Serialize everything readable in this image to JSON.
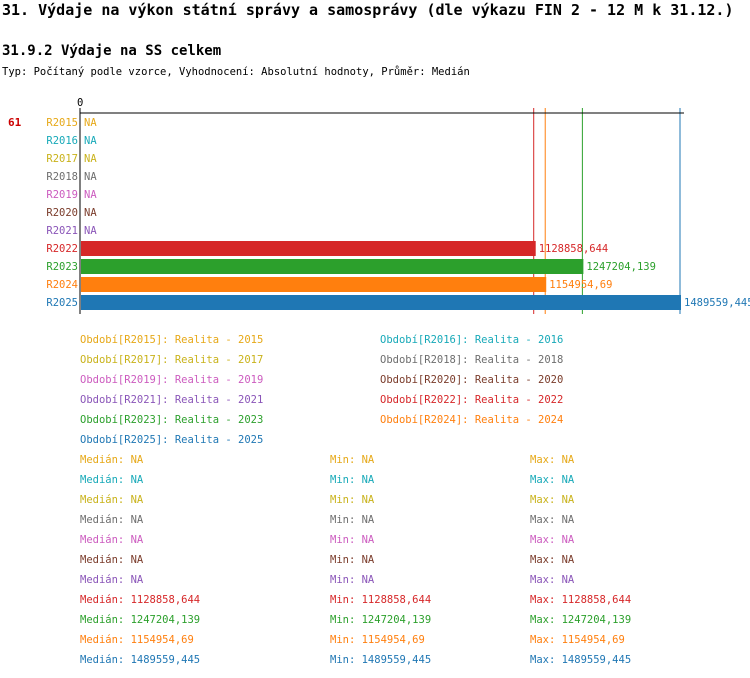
{
  "header": {
    "title": "31. Výdaje na výkon státní správy a samosprávy (dle výkazu FIN 2 - 12 M k 31.12.)",
    "subtitle": "31.9.2 Výdaje na SS celkem",
    "info": "Typ: Počítaný podle vzorce, Vyhodnocení: Absolutní hodnoty, Průměr: Medián",
    "row_id": "61"
  },
  "chart_data": {
    "type": "bar",
    "orientation": "horizontal",
    "axis_zero_label": "0",
    "categories": [
      "R2015",
      "R2016",
      "R2017",
      "R2018",
      "R2019",
      "R2020",
      "R2021",
      "R2022",
      "R2023",
      "R2024",
      "R2025"
    ],
    "values": [
      null,
      null,
      null,
      null,
      null,
      null,
      null,
      1128858.644,
      1247204.139,
      1154954.69,
      1489559.445
    ],
    "value_labels": [
      "NA",
      "NA",
      "NA",
      "NA",
      "NA",
      "NA",
      "NA",
      "1128858,644",
      "1247204,139",
      "1154954,69",
      "1489559,445"
    ],
    "colors": [
      "#e6a817",
      "#17a9b8",
      "#c9b21a",
      "#6e6e6e",
      "#cc5bbf",
      "#7a3b2a",
      "#8a55b8",
      "#d62728",
      "#2ca02c",
      "#ff7f0e",
      "#1f77b4"
    ],
    "xlim": [
      0,
      1489559.445
    ],
    "median_lines": [
      1128858.644,
      1247204.139,
      1154954.69,
      1489559.445
    ],
    "legend": [
      {
        "label": "Období[R2015]: Realita - 2015",
        "color": "#e6a817"
      },
      {
        "label": "Období[R2016]: Realita - 2016",
        "color": "#17a9b8"
      },
      {
        "label": "Období[R2017]: Realita - 2017",
        "color": "#c9b21a"
      },
      {
        "label": "Období[R2018]: Realita - 2018",
        "color": "#6e6e6e"
      },
      {
        "label": "Období[R2019]: Realita - 2019",
        "color": "#cc5bbf"
      },
      {
        "label": "Období[R2020]: Realita - 2020",
        "color": "#7a3b2a"
      },
      {
        "label": "Období[R2021]: Realita - 2021",
        "color": "#8a55b8"
      },
      {
        "label": "Období[R2022]: Realita - 2022",
        "color": "#d62728"
      },
      {
        "label": "Období[R2023]: Realita - 2023",
        "color": "#2ca02c"
      },
      {
        "label": "Období[R2024]: Realita - 2024",
        "color": "#ff7f0e"
      },
      {
        "label": "Období[R2025]: Realita - 2025",
        "color": "#1f77b4"
      }
    ],
    "stats": [
      {
        "median": "Medián: NA",
        "min": "Min: NA",
        "max": "Max: NA",
        "color": "#e6a817"
      },
      {
        "median": "Medián: NA",
        "min": "Min: NA",
        "max": "Max: NA",
        "color": "#17a9b8"
      },
      {
        "median": "Medián: NA",
        "min": "Min: NA",
        "max": "Max: NA",
        "color": "#c9b21a"
      },
      {
        "median": "Medián: NA",
        "min": "Min: NA",
        "max": "Max: NA",
        "color": "#6e6e6e"
      },
      {
        "median": "Medián: NA",
        "min": "Min: NA",
        "max": "Max: NA",
        "color": "#cc5bbf"
      },
      {
        "median": "Medián: NA",
        "min": "Min: NA",
        "max": "Max: NA",
        "color": "#7a3b2a"
      },
      {
        "median": "Medián: NA",
        "min": "Min: NA",
        "max": "Max: NA",
        "color": "#8a55b8"
      },
      {
        "median": "Medián: 1128858,644",
        "min": "Min: 1128858,644",
        "max": "Max: 1128858,644",
        "color": "#d62728"
      },
      {
        "median": "Medián: 1247204,139",
        "min": "Min: 1247204,139",
        "max": "Max: 1247204,139",
        "color": "#2ca02c"
      },
      {
        "median": "Medián: 1154954,69",
        "min": "Min: 1154954,69",
        "max": "Max: 1154954,69",
        "color": "#ff7f0e"
      },
      {
        "median": "Medián: 1489559,445",
        "min": "Min: 1489559,445",
        "max": "Max: 1489559,445",
        "color": "#1f77b4"
      }
    ]
  }
}
